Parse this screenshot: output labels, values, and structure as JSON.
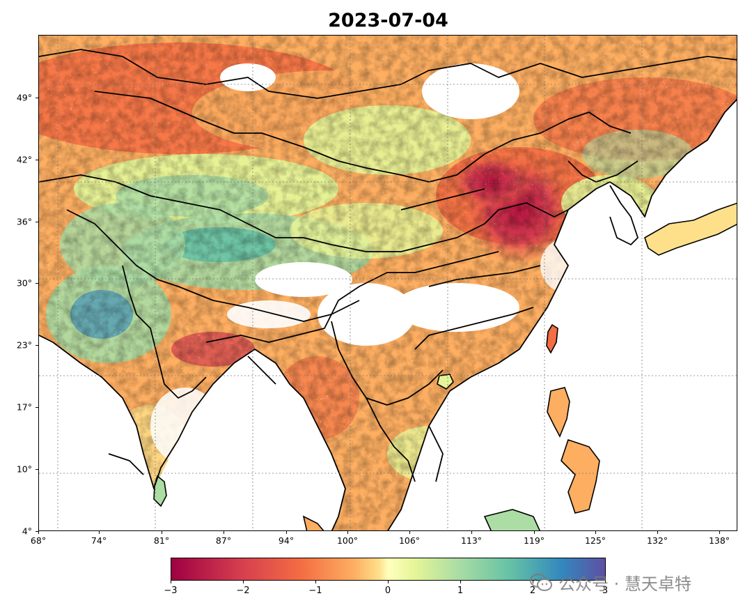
{
  "title": "2023-07-04",
  "map": {
    "lon_range": [
      68,
      140
    ],
    "lat_range": [
      4,
      53
    ],
    "x_ticks": [
      "68°",
      "74°",
      "81°",
      "87°",
      "94°",
      "100°",
      "106°",
      "113°",
      "119°",
      "125°",
      "132°",
      "138°"
    ],
    "y_ticks": [
      "4°",
      "10°",
      "17°",
      "23°",
      "30°",
      "36°",
      "42°",
      "49°"
    ],
    "gridlines": true,
    "gridline_style": "dotted"
  },
  "colorbar": {
    "colormap": "Spectral",
    "min": -3,
    "max": 3,
    "ticks": [
      "−3",
      "−2",
      "−1",
      "0",
      "1",
      "2",
      "3"
    ],
    "colors": [
      "#9e0142",
      "#d53e4f",
      "#f46d43",
      "#fdae61",
      "#fee08b",
      "#ffffbf",
      "#e6f598",
      "#abdda4",
      "#66c2a5",
      "#3288bd",
      "#5e4fa2"
    ]
  },
  "watermark": {
    "text": "公众号 · 慧天卓特",
    "icon": "wechat-icon"
  }
}
